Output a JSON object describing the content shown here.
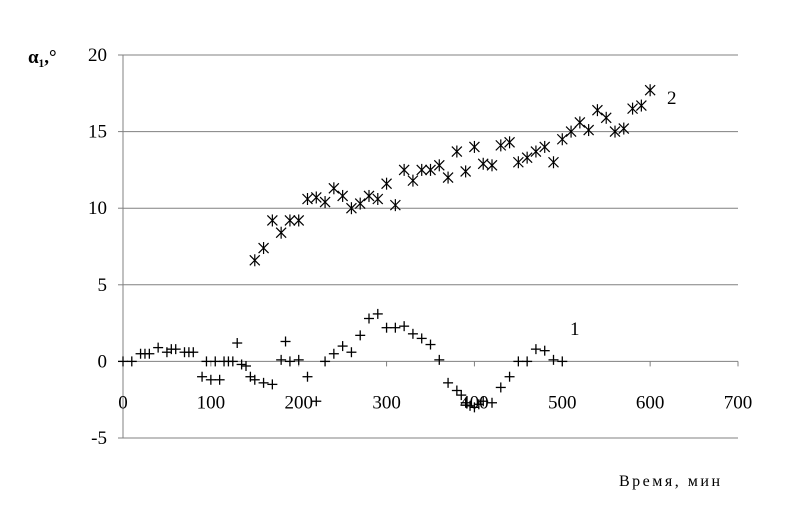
{
  "chart_data": {
    "type": "scatter",
    "ylabel": "α₁,°",
    "xlabel": "Время, мин",
    "xlim": [
      0,
      700
    ],
    "ylim": [
      -5,
      20
    ],
    "xticks": [
      "0",
      "100",
      "200",
      "300",
      "400",
      "500",
      "600",
      "700"
    ],
    "yticks": [
      "-5",
      "0",
      "5",
      "10",
      "15",
      "20"
    ],
    "grid": "horizontal",
    "series": [
      {
        "label": "1",
        "marker": "plus",
        "x": [
          0,
          10,
          20,
          25,
          30,
          40,
          50,
          55,
          60,
          70,
          75,
          80,
          90,
          95,
          100,
          105,
          110,
          115,
          120,
          125,
          130,
          135,
          140,
          145,
          150,
          160,
          170,
          180,
          185,
          190,
          200,
          210,
          220,
          230,
          240,
          250,
          260,
          270,
          280,
          290,
          300,
          310,
          320,
          330,
          340,
          350,
          360,
          370,
          380,
          385,
          390,
          395,
          400,
          405,
          410,
          420,
          430,
          440,
          450,
          460,
          470,
          480,
          490,
          500
        ],
        "y": [
          0,
          0,
          0.5,
          0.5,
          0.5,
          0.9,
          0.6,
          0.8,
          0.8,
          0.6,
          0.6,
          0.6,
          -1,
          0,
          -1.2,
          0,
          -1.2,
          0,
          0,
          0,
          1.2,
          -0.2,
          -0.3,
          -1,
          -1.2,
          -1.4,
          -1.5,
          0.1,
          1.3,
          0,
          0.1,
          -1,
          -2.6,
          0,
          0.5,
          1,
          0.6,
          1.7,
          2.8,
          3.1,
          2.2,
          2.2,
          2.3,
          1.8,
          1.5,
          1.1,
          0.1,
          -1.4,
          -1.9,
          -2.2,
          -2.7,
          -2.9,
          -3,
          -2.8,
          -2.6,
          -2.7,
          -1.7,
          -1,
          0,
          0,
          0.8,
          0.7,
          0.1,
          0
        ]
      },
      {
        "label": "2",
        "marker": "star",
        "x": [
          150,
          160,
          170,
          180,
          190,
          200,
          210,
          220,
          230,
          240,
          250,
          260,
          270,
          280,
          290,
          300,
          310,
          320,
          330,
          340,
          350,
          360,
          370,
          380,
          390,
          400,
          410,
          420,
          430,
          440,
          450,
          460,
          470,
          480,
          490,
          500,
          510,
          520,
          530,
          540,
          550,
          560,
          570,
          580,
          590,
          600
        ],
        "y": [
          6.6,
          7.4,
          9.2,
          8.4,
          9.2,
          9.2,
          10.6,
          10.7,
          10.4,
          11.3,
          10.8,
          10,
          10.3,
          10.8,
          10.6,
          11.6,
          10.2,
          12.5,
          11.8,
          12.5,
          12.5,
          12.8,
          12,
          13.7,
          12.4,
          14,
          12.9,
          12.8,
          14.1,
          14.3,
          13,
          13.3,
          13.7,
          14,
          13,
          14.5,
          15,
          15.6,
          15.1,
          16.4,
          15.9,
          15,
          15.2,
          16.5,
          16.7,
          17.7
        ]
      }
    ]
  }
}
